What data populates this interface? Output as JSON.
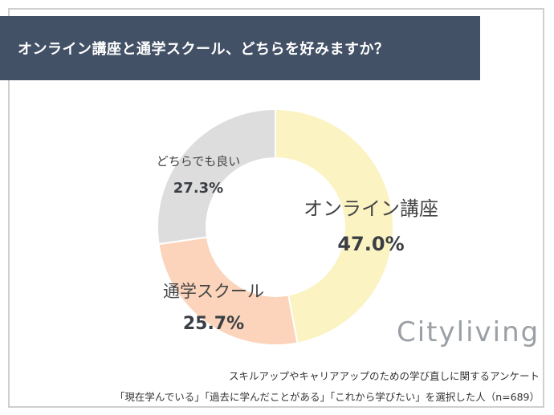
{
  "header": {
    "title": "オンライン講座と通学スクール、どちらを好みますか？"
  },
  "chart_data": {
    "type": "pie",
    "subtype": "donut",
    "title": "オンライン講座と通学スクール、どちらを好みますか？",
    "categories": [
      "オンライン講座",
      "通学スクール",
      "どちらでも良い"
    ],
    "values": [
      47.0,
      25.7,
      27.3
    ],
    "value_labels": [
      "47.0%",
      "25.7%",
      "27.3%"
    ],
    "colors": [
      "#fbf3c2",
      "#fbd4bb",
      "#dddddd"
    ],
    "unit": "%"
  },
  "brand": {
    "name": "Cityliving"
  },
  "footnotes": {
    "line1": "スキルアップやキャリアアップのための学び直しに関するアンケート",
    "line2": "「現在学んでいる」「過去に学んだことがある」「これから学びたい」を選択した人（n=689）"
  }
}
